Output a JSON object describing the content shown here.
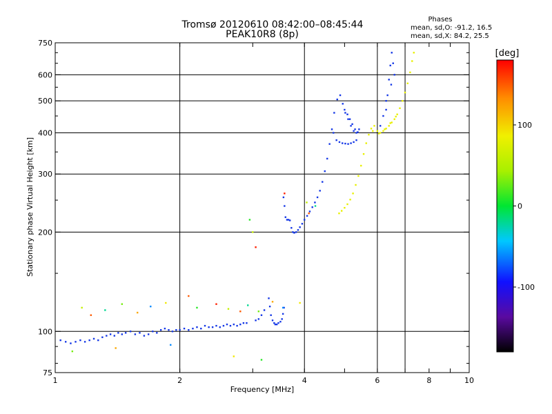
{
  "chart_data": {
    "type": "scatter",
    "title": "Tromsø 20120610 08:42:00–08:45:44",
    "subtitle": "PEAK10R8 (8p)",
    "xlabel": "Frequency [MHz]",
    "ylabel": "Stationary phase Virtual Height [km]",
    "x_scale": "log",
    "y_scale": "log",
    "xlim": [
      1,
      10
    ],
    "ylim": [
      75,
      750
    ],
    "xticks": [
      1,
      2,
      4,
      6,
      8,
      10
    ],
    "xtick_labels": [
      "1",
      "2",
      "4",
      "6",
      "8",
      "10"
    ],
    "xgrid": [
      2,
      4,
      6,
      7
    ],
    "yticks": [
      75,
      100,
      200,
      300,
      400,
      500,
      600,
      750
    ],
    "ytick_labels": [
      "75",
      "100",
      "200",
      "300",
      "400",
      "500",
      "600",
      "750"
    ],
    "ygrid": [
      100,
      200,
      300,
      400,
      500,
      600
    ],
    "grid": true,
    "stats": {
      "heading": "Phases",
      "line_o": "mean, sd,O: -91.2, 16.5",
      "line_x": "mean, sd,X:  84.2, 25.5"
    },
    "colorbar": {
      "label": "[deg]",
      "range": [
        -180,
        180
      ],
      "ticks": [
        100,
        0,
        -100
      ],
      "tick_labels": [
        "100",
        "0",
        "-100"
      ]
    },
    "colors": {
      "o_mode": "#1437e6",
      "x_mode": "#e8f000"
    },
    "series": [
      {
        "mode": "O",
        "phase_deg": -91,
        "points": [
          [
            1.03,
            94
          ],
          [
            1.06,
            93
          ],
          [
            1.09,
            92
          ],
          [
            1.12,
            93
          ],
          [
            1.15,
            94
          ],
          [
            1.18,
            93
          ],
          [
            1.21,
            94
          ],
          [
            1.24,
            95
          ],
          [
            1.27,
            94
          ],
          [
            1.3,
            96
          ],
          [
            1.33,
            97
          ],
          [
            1.36,
            98
          ],
          [
            1.39,
            97
          ],
          [
            1.42,
            99
          ],
          [
            1.45,
            98
          ],
          [
            1.48,
            99
          ],
          [
            1.52,
            100
          ],
          [
            1.56,
            98
          ],
          [
            1.6,
            99
          ],
          [
            1.64,
            97
          ],
          [
            1.68,
            98
          ],
          [
            1.72,
            100
          ],
          [
            1.76,
            99
          ],
          [
            1.8,
            101
          ],
          [
            1.84,
            102
          ],
          [
            1.88,
            101
          ],
          [
            1.92,
            100
          ],
          [
            1.96,
            101
          ],
          [
            2.0,
            101
          ],
          [
            2.05,
            102
          ],
          [
            2.1,
            101
          ],
          [
            2.15,
            102
          ],
          [
            2.2,
            103
          ],
          [
            2.25,
            102
          ],
          [
            2.3,
            104
          ],
          [
            2.35,
            103
          ],
          [
            2.4,
            103
          ],
          [
            2.45,
            104
          ],
          [
            2.5,
            103
          ],
          [
            2.55,
            104
          ],
          [
            2.6,
            105
          ],
          [
            2.65,
            104
          ],
          [
            2.7,
            105
          ],
          [
            2.75,
            104
          ],
          [
            2.8,
            105
          ],
          [
            2.85,
            106
          ],
          [
            2.9,
            106
          ],
          [
            3.05,
            108
          ],
          [
            3.1,
            109
          ],
          [
            3.15,
            112
          ],
          [
            3.2,
            116
          ],
          [
            3.28,
            126
          ],
          [
            3.3,
            119
          ],
          [
            3.32,
            112
          ],
          [
            3.35,
            108
          ],
          [
            3.38,
            106
          ],
          [
            3.4,
            105
          ],
          [
            3.43,
            105
          ],
          [
            3.46,
            106
          ],
          [
            3.5,
            107
          ],
          [
            3.53,
            109
          ],
          [
            3.55,
            113
          ],
          [
            3.57,
            118
          ],
          [
            3.56,
            255
          ],
          [
            3.58,
            240
          ],
          [
            3.6,
            222
          ],
          [
            3.63,
            218
          ],
          [
            3.66,
            218
          ],
          [
            3.69,
            217
          ],
          [
            3.72,
            206
          ],
          [
            3.75,
            200
          ],
          [
            3.78,
            199
          ],
          [
            3.82,
            200
          ],
          [
            3.86,
            203
          ],
          [
            3.9,
            207
          ],
          [
            3.95,
            212
          ],
          [
            4.0,
            218
          ],
          [
            4.06,
            224
          ],
          [
            4.12,
            231
          ],
          [
            4.18,
            238
          ],
          [
            4.24,
            246
          ],
          [
            4.3,
            255
          ],
          [
            4.36,
            267
          ],
          [
            4.42,
            284
          ],
          [
            4.48,
            306
          ],
          [
            4.54,
            334
          ],
          [
            4.6,
            370
          ],
          [
            4.66,
            410
          ],
          [
            4.72,
            460
          ],
          [
            4.8,
            505
          ],
          [
            4.88,
            520
          ],
          [
            4.95,
            490
          ],
          [
            5.02,
            460
          ],
          [
            5.1,
            440
          ],
          [
            5.18,
            420
          ],
          [
            5.26,
            405
          ],
          [
            5.34,
            400
          ],
          [
            5.42,
            410
          ],
          [
            4.7,
            400
          ],
          [
            4.78,
            380
          ],
          [
            4.86,
            375
          ],
          [
            4.94,
            372
          ],
          [
            5.02,
            371
          ],
          [
            5.1,
            370
          ],
          [
            5.18,
            372
          ],
          [
            5.26,
            375
          ],
          [
            5.34,
            380
          ],
          [
            5.0,
            470
          ],
          [
            5.08,
            455
          ],
          [
            5.15,
            440
          ],
          [
            5.22,
            425
          ],
          [
            5.3,
            410
          ],
          [
            5.38,
            402
          ],
          [
            6.3,
            470
          ],
          [
            6.35,
            520
          ],
          [
            6.4,
            580
          ],
          [
            6.45,
            640
          ],
          [
            6.5,
            700
          ],
          [
            6.55,
            650
          ],
          [
            6.6,
            600
          ],
          [
            6.48,
            560
          ],
          [
            6.3,
            500
          ],
          [
            6.2,
            450
          ],
          [
            6.1,
            420
          ]
        ]
      },
      {
        "mode": "X",
        "phase_deg": 84,
        "points": [
          [
            4.85,
            228
          ],
          [
            4.92,
            232
          ],
          [
            5.0,
            237
          ],
          [
            5.08,
            243
          ],
          [
            5.16,
            251
          ],
          [
            5.24,
            262
          ],
          [
            5.32,
            278
          ],
          [
            5.4,
            296
          ],
          [
            5.48,
            318
          ],
          [
            5.56,
            345
          ],
          [
            5.64,
            372
          ],
          [
            5.72,
            395
          ],
          [
            5.8,
            412
          ],
          [
            5.9,
            420
          ],
          [
            6.0,
            405
          ],
          [
            6.1,
            400
          ],
          [
            6.2,
            405
          ],
          [
            6.3,
            412
          ],
          [
            6.4,
            420
          ],
          [
            6.5,
            430
          ],
          [
            6.6,
            440
          ],
          [
            6.7,
            455
          ],
          [
            6.8,
            475
          ],
          [
            6.9,
            500
          ],
          [
            7.0,
            530
          ],
          [
            7.1,
            565
          ],
          [
            7.2,
            610
          ],
          [
            7.28,
            660
          ],
          [
            7.35,
            700
          ],
          [
            5.85,
            405
          ],
          [
            6.05,
            398
          ],
          [
            6.25,
            410
          ],
          [
            6.45,
            428
          ],
          [
            6.65,
            448
          ]
        ]
      },
      {
        "mode": "scatter",
        "phase_deg": 60,
        "points": [
          [
            1.16,
            118
          ],
          [
            1.22,
            112
          ],
          [
            1.32,
            116
          ],
          [
            1.45,
            121
          ],
          [
            1.58,
            114
          ],
          [
            1.7,
            119
          ],
          [
            1.85,
            122
          ],
          [
            2.2,
            118
          ],
          [
            2.45,
            121
          ],
          [
            2.62,
            117
          ],
          [
            2.8,
            115
          ],
          [
            2.92,
            120
          ],
          [
            3.1,
            115
          ],
          [
            3.35,
            123
          ],
          [
            3.55,
            118
          ],
          [
            3.9,
            122
          ],
          [
            2.95,
            218
          ],
          [
            3.05,
            180
          ],
          [
            3.0,
            200
          ],
          [
            4.1,
            228
          ],
          [
            4.25,
            240
          ],
          [
            1.1,
            87
          ],
          [
            1.4,
            89
          ],
          [
            1.9,
            91
          ],
          [
            2.7,
            84
          ],
          [
            3.15,
            82
          ],
          [
            3.58,
            262
          ],
          [
            4.05,
            246
          ],
          [
            2.1,
            128
          ]
        ]
      }
    ]
  }
}
